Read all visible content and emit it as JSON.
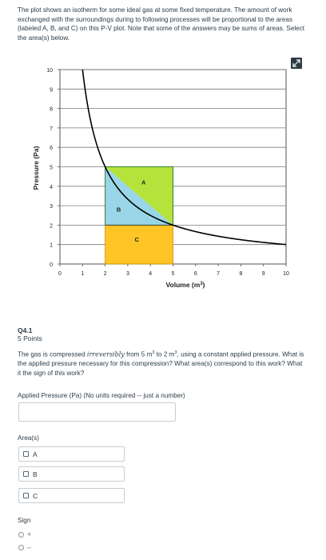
{
  "intro": {
    "text": "The plot shows an isotherm for some ideal gas at some fixed temperature. The amount of work exchanged with the surroundings during to following processes will be proportional to the areas (labeled A, B, and C) on this P-V plot.  Note that some of the answers may be sums of areas.  Select the area(s) below."
  },
  "chart_data": {
    "type": "line",
    "title": "",
    "xlabel": "Volume (m³)",
    "ylabel": "Pressure (Pa)",
    "xlim": [
      0,
      10
    ],
    "ylim": [
      0,
      10
    ],
    "xticks": [
      "0",
      "1",
      "2",
      "3",
      "4",
      "5",
      "6",
      "7",
      "8",
      "9",
      "10"
    ],
    "yticks": [
      "0",
      "1",
      "2",
      "3",
      "4",
      "5",
      "6",
      "7",
      "8",
      "9",
      "10"
    ],
    "grid": true,
    "series": [
      {
        "function": "P = 10 / V",
        "x": [
          1,
          1.25,
          1.5,
          1.75,
          2,
          2.5,
          3,
          4,
          5,
          6,
          7,
          8,
          9,
          10
        ],
        "y": [
          10,
          8,
          6.67,
          5.71,
          5,
          4,
          3.33,
          2.5,
          2,
          1.67,
          1.43,
          1.25,
          1.11,
          1
        ]
      }
    ],
    "regions": [
      {
        "label": "A",
        "color": "#b5e33b",
        "polygon": [
          [
            2,
            5
          ],
          [
            5,
            5
          ],
          [
            5,
            2
          ]
        ]
      },
      {
        "label": "B",
        "color": "#98d6e8",
        "polygon": [
          [
            2,
            5
          ],
          [
            5,
            2
          ],
          [
            2,
            2
          ]
        ]
      },
      {
        "label": "C",
        "color": "#ffc425",
        "polygon": [
          [
            2,
            0
          ],
          [
            5,
            0
          ],
          [
            5,
            2
          ],
          [
            2,
            2
          ]
        ]
      }
    ],
    "curve_color": "#000000",
    "rect_edge_color": "#2e7d32"
  },
  "question": {
    "number": "Q4.1",
    "points": "5 Points",
    "text_pre": "The gas is compressed ",
    "text_irreversibly": "irreversibly",
    "text_from": " from 5 m",
    "text_to": " to 2 m",
    "text_post": ", using a constant applied pressure. What is the applied pressure necessary for this compression? What area(s) correspond to this work?  What it the sign of this work?",
    "sup": "3"
  },
  "pressure_field": {
    "label": "Applied Pressure (Pa) (No units required -- just a number)",
    "value": ""
  },
  "areas": {
    "label": "Area(s)",
    "options": [
      "A",
      "B",
      "C"
    ]
  },
  "sign": {
    "label": "Sign",
    "options": [
      "+",
      "–"
    ]
  }
}
